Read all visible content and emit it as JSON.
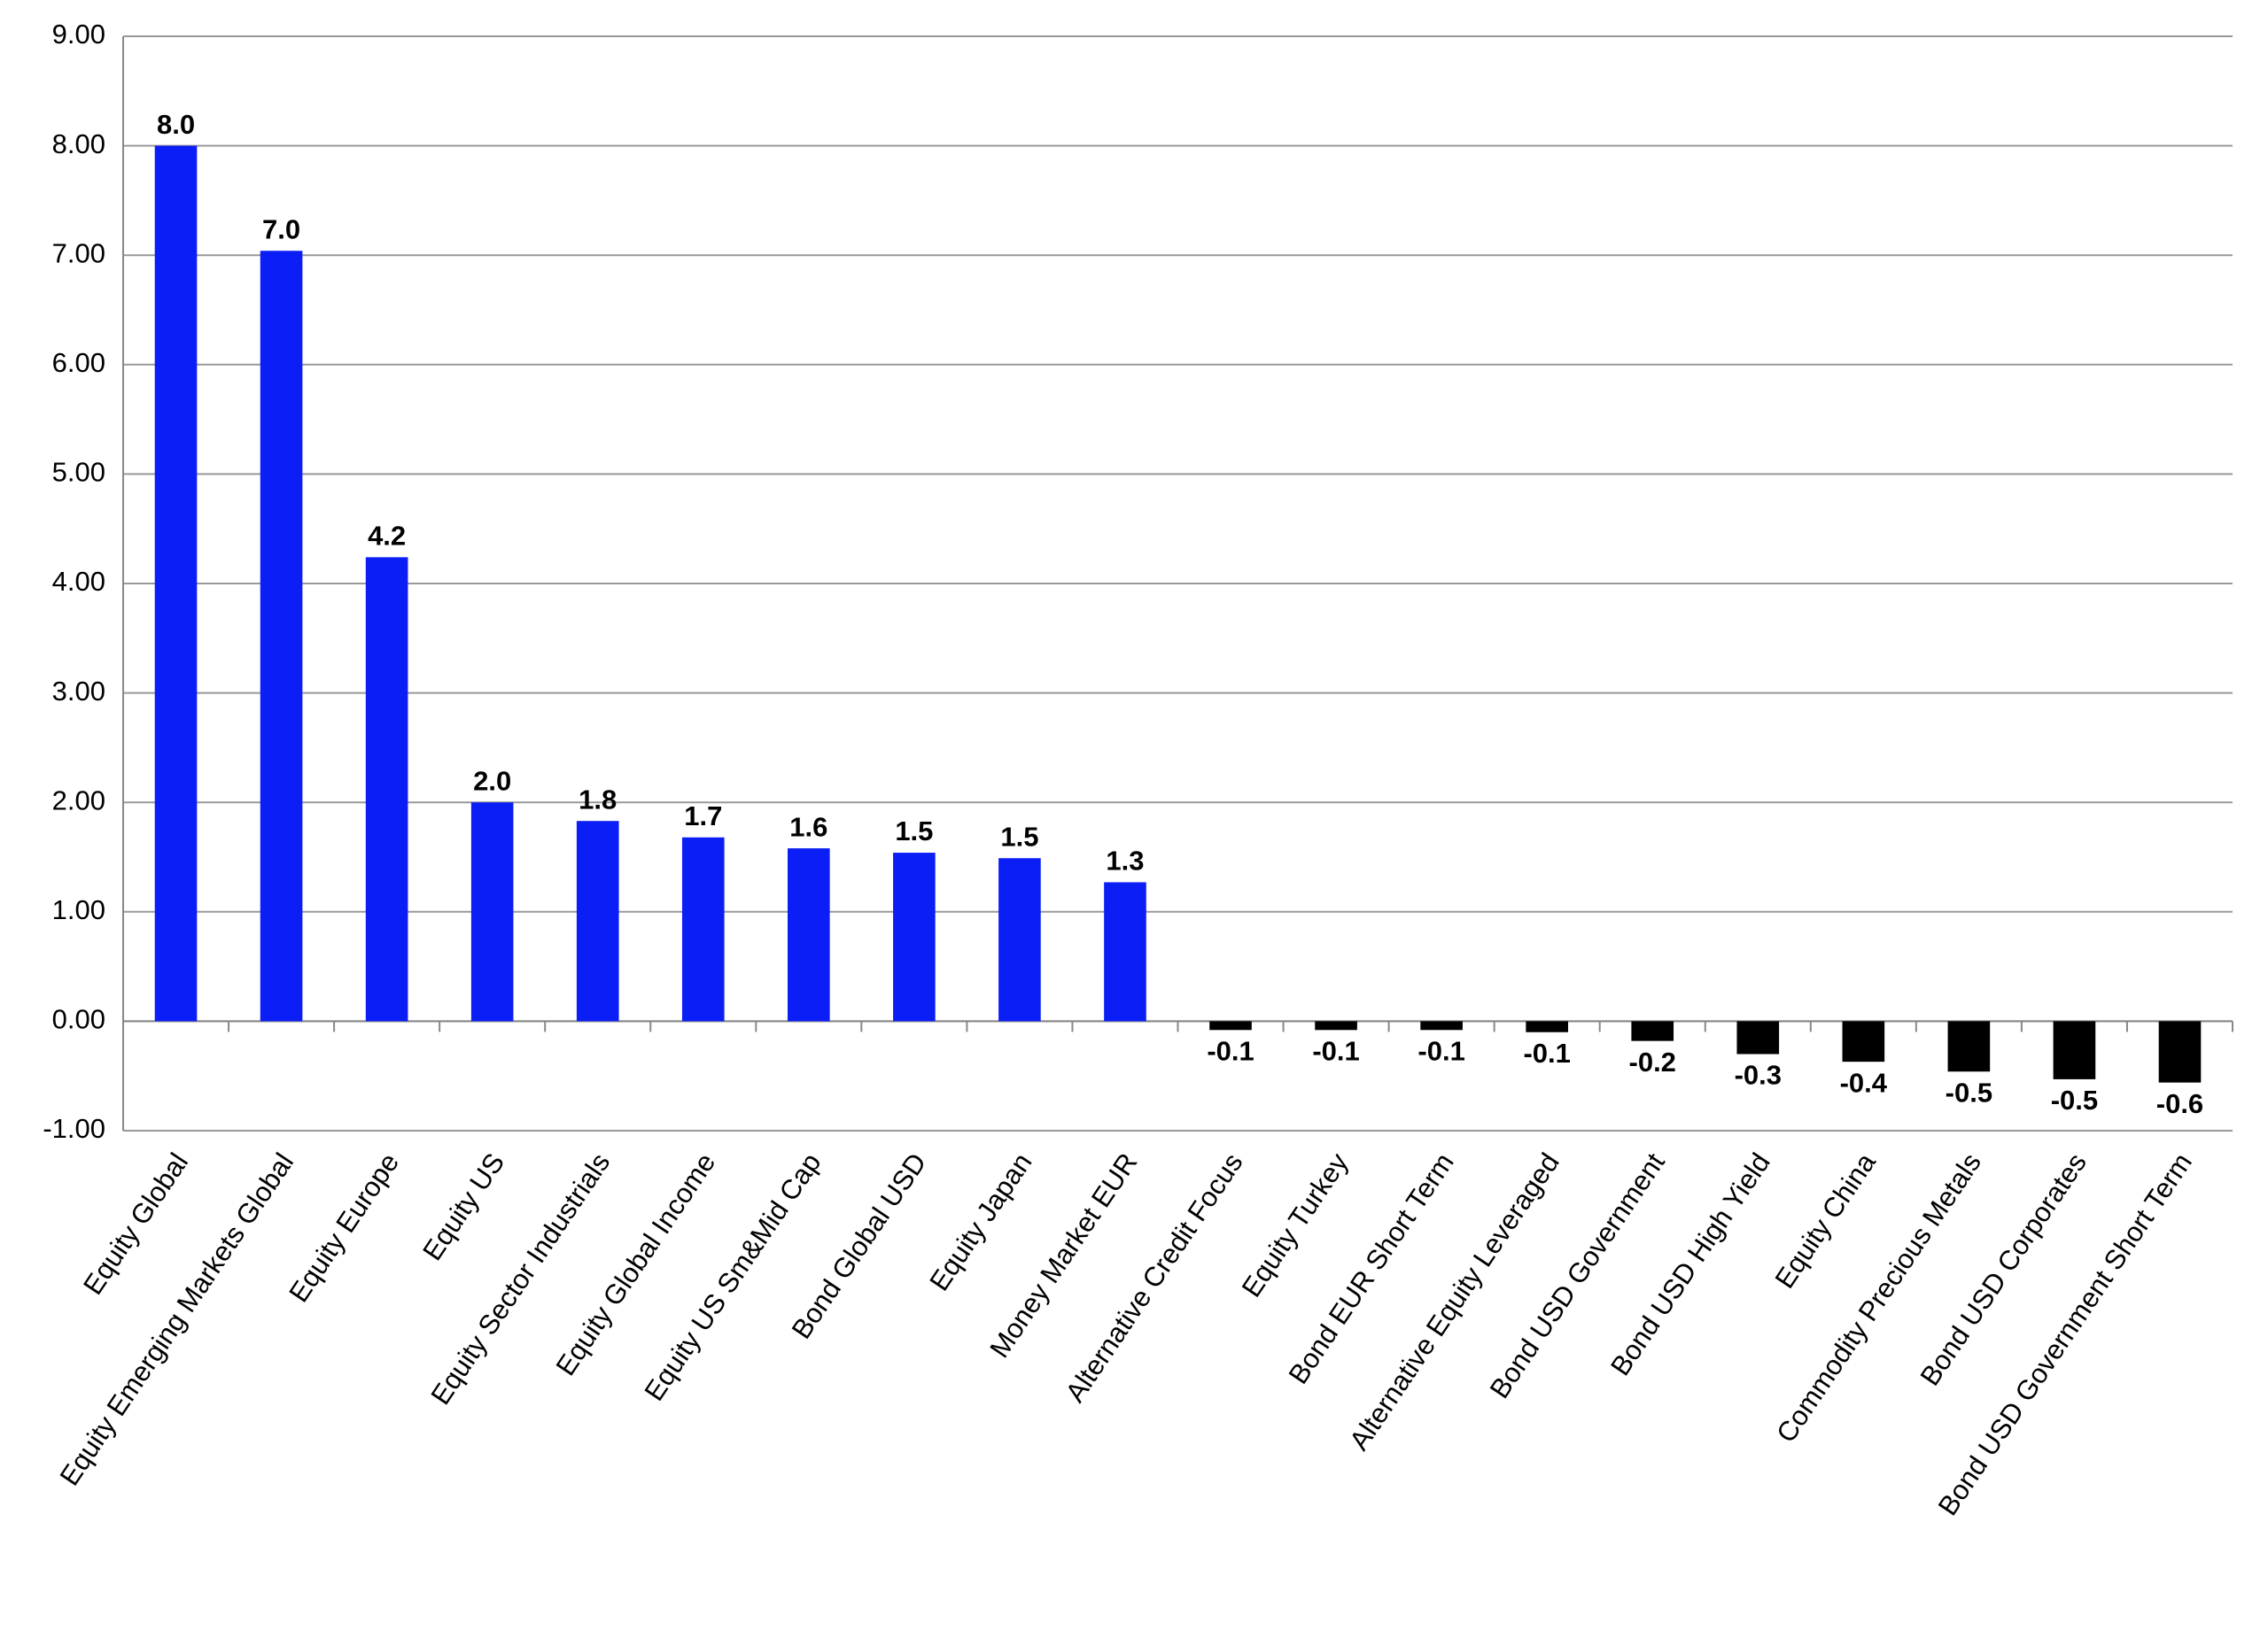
{
  "chart_data": {
    "type": "bar",
    "categories": [
      "Equity Global",
      "Equity Emerging Markets Global",
      "Equity Europe",
      "Equity US",
      "Equity Sector Industrials",
      "Equity Global Income",
      "Equity US Sm&Mid Cap",
      "Bond Global USD",
      "Equity Japan",
      "Money Market EUR",
      "Alternative Credit Focus",
      "Equity Turkey",
      "Bond EUR Short Term",
      "Alternative Equity Leveraged",
      "Bond USD Government",
      "Bond USD High Yield",
      "Equity China",
      "Commodity Precious Metals",
      "Bond USD Corporates",
      "Bond USD Government Short Term"
    ],
    "values": [
      8.0,
      7.04,
      4.24,
      2.0,
      1.83,
      1.68,
      1.58,
      1.54,
      1.49,
      1.27,
      -0.08,
      -0.08,
      -0.08,
      -0.1,
      -0.18,
      -0.3,
      -0.37,
      -0.46,
      -0.53,
      -0.56
    ],
    "value_labels": [
      "8.0",
      "7.0",
      "4.2",
      "2.0",
      "1.8",
      "1.7",
      "1.6",
      "1.5",
      "1.5",
      "1.3",
      "-0.1",
      "-0.1",
      "-0.1",
      "-0.1",
      "-0.2",
      "-0.3",
      "-0.4",
      "-0.5",
      "-0.5",
      "-0.6"
    ],
    "positive_color": "#0a1ef5",
    "negative_color": "#000000",
    "ylim": [
      -1,
      9
    ],
    "yticks": [
      {
        "value": -1,
        "label": "-1.00"
      },
      {
        "value": 0,
        "label": "0.00"
      },
      {
        "value": 1,
        "label": "1.00"
      },
      {
        "value": 2,
        "label": "2.00"
      },
      {
        "value": 3,
        "label": "3.00"
      },
      {
        "value": 4,
        "label": "4.00"
      },
      {
        "value": 5,
        "label": "5.00"
      },
      {
        "value": 6,
        "label": "6.00"
      },
      {
        "value": 7,
        "label": "7.00"
      },
      {
        "value": 8,
        "label": "8.00"
      },
      {
        "value": 9,
        "label": "9.00"
      }
    ],
    "grid": true
  }
}
